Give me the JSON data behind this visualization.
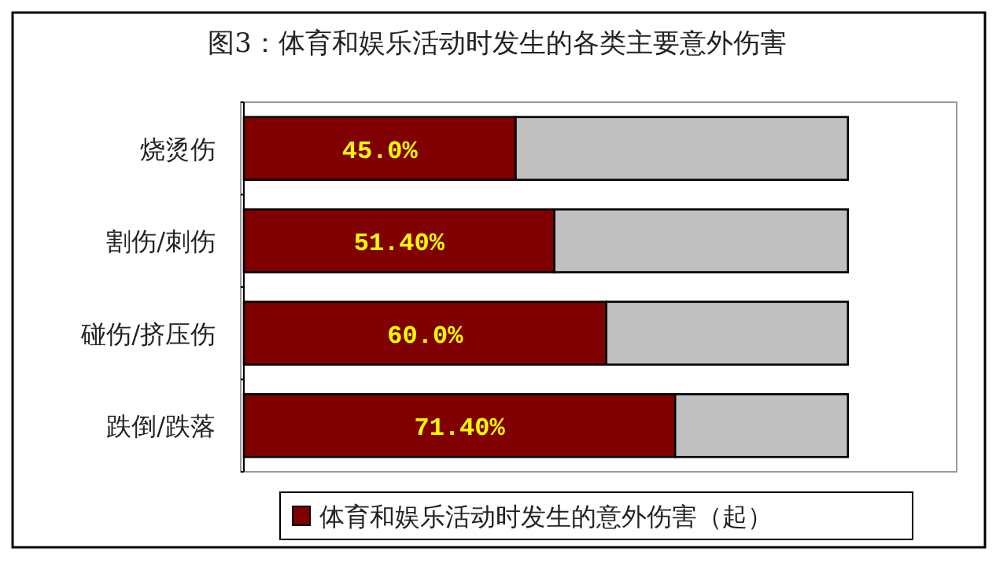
{
  "chart_data": {
    "type": "bar",
    "orientation": "horizontal",
    "stacked": true,
    "title": "图3：体育和娱乐活动时发生的各类主要意外伤害",
    "categories": [
      "烧烫伤",
      "割伤/刺伤",
      "碰伤/挤压伤",
      "跌倒/跌落"
    ],
    "series": [
      {
        "name": "体育和娱乐活动时发生的意外伤害（起）",
        "color": "#800000",
        "values": [
          45.0,
          51.4,
          60.0,
          71.4
        ],
        "value_labels": [
          "45.0%",
          "51.40%",
          "60.0%",
          "71.40%"
        ]
      },
      {
        "color": "#c0c0c0",
        "values": [
          55.0,
          48.6,
          40.0,
          28.6
        ]
      }
    ],
    "xlim": [
      0,
      118
    ],
    "tick_labels": "y",
    "legend": "bottom"
  }
}
